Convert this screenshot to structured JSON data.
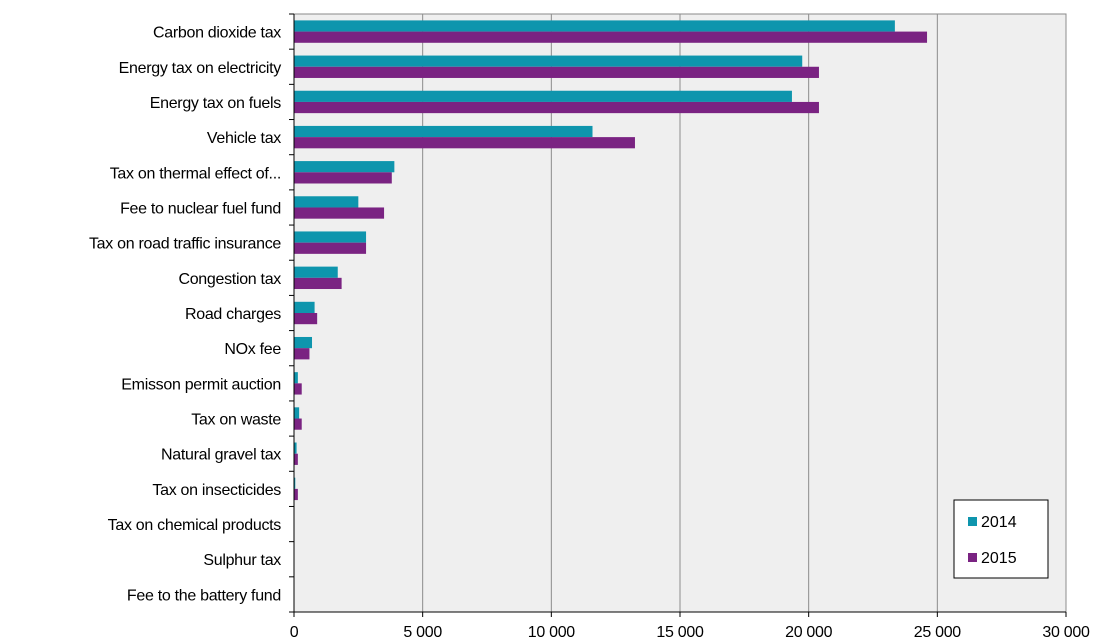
{
  "chart_data": {
    "type": "bar",
    "orientation": "horizontal",
    "categories": [
      "Carbon dioxide tax",
      "Energy tax on electricity",
      "Energy tax on fuels",
      "Vehicle tax",
      "Tax on thermal effect of...",
      "Fee to nuclear fuel fund",
      "Tax on road traffic insurance",
      "Congestion tax",
      "Road charges",
      "NOx fee",
      "Emisson permit auction",
      "Tax on waste",
      "Natural gravel tax",
      "Tax on insecticides",
      "Tax on chemical products",
      "Sulphur tax",
      "Fee to the battery fund"
    ],
    "series": [
      {
        "name": "2014",
        "color": "#0e95ad",
        "values": [
          23350,
          19750,
          19350,
          11600,
          3900,
          2500,
          2800,
          1700,
          800,
          700,
          150,
          200,
          100,
          50,
          0,
          0,
          0
        ]
      },
      {
        "name": "2015",
        "color": "#7a2382",
        "values": [
          24600,
          20400,
          20400,
          13250,
          3800,
          3500,
          2800,
          1850,
          900,
          600,
          300,
          300,
          150,
          150,
          0,
          0,
          0
        ]
      }
    ],
    "xlim": [
      0,
      30000
    ],
    "xticks": [
      0,
      5000,
      10000,
      15000,
      20000,
      25000,
      30000
    ],
    "xtick_labels": [
      "0",
      "5 000",
      "10 000",
      "15 000",
      "20 000",
      "25 000",
      "30 000"
    ],
    "grid": "vertical",
    "plot_background": "#efefef",
    "legend": {
      "position": "bottom-right",
      "entries": [
        "2014",
        "2015"
      ]
    },
    "title": "",
    "xlabel": "",
    "ylabel": ""
  }
}
